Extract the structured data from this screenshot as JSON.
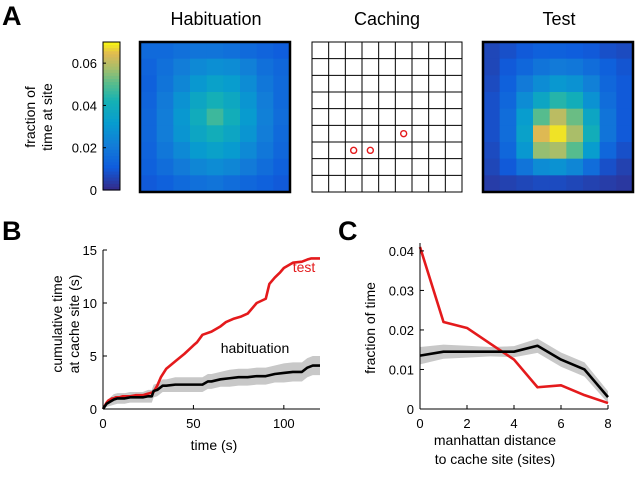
{
  "panels": {
    "A": {
      "letter": "A"
    },
    "B": {
      "letter": "B"
    },
    "C": {
      "letter": "C"
    }
  },
  "colors": {
    "test": "#e41a1c",
    "habituation": "#000000",
    "band": "#c8c8c8",
    "cache_marker": "#e41a1c",
    "grid": "#000000"
  },
  "chart_data": [
    {
      "type": "heatmap",
      "panel": "A",
      "name": "habituation",
      "title": "Habituation",
      "colormap": "parula",
      "clim": [
        0,
        0.07
      ],
      "values": [
        [
          0.015,
          0.015,
          0.017,
          0.018,
          0.018,
          0.017,
          0.015,
          0.013,
          0.011
        ],
        [
          0.013,
          0.017,
          0.021,
          0.025,
          0.027,
          0.026,
          0.022,
          0.017,
          0.014
        ],
        [
          0.012,
          0.018,
          0.024,
          0.03,
          0.034,
          0.032,
          0.026,
          0.019,
          0.015
        ],
        [
          0.013,
          0.02,
          0.028,
          0.036,
          0.041,
          0.037,
          0.029,
          0.021,
          0.015
        ],
        [
          0.014,
          0.021,
          0.03,
          0.039,
          0.047,
          0.04,
          0.031,
          0.022,
          0.016
        ],
        [
          0.014,
          0.021,
          0.029,
          0.036,
          0.04,
          0.036,
          0.029,
          0.021,
          0.015
        ],
        [
          0.013,
          0.019,
          0.025,
          0.031,
          0.034,
          0.031,
          0.025,
          0.019,
          0.014
        ],
        [
          0.012,
          0.016,
          0.02,
          0.024,
          0.026,
          0.024,
          0.02,
          0.016,
          0.012
        ],
        [
          0.01,
          0.012,
          0.015,
          0.017,
          0.018,
          0.016,
          0.014,
          0.012,
          0.01
        ]
      ]
    },
    {
      "type": "grid",
      "panel": "A",
      "name": "caching",
      "title": "Caching",
      "rows": 9,
      "cols": 9,
      "cache_sites": [
        [
          2,
          6
        ],
        [
          3,
          6
        ],
        [
          5,
          5
        ]
      ]
    },
    {
      "type": "heatmap",
      "panel": "A",
      "name": "test",
      "title": "Test",
      "colormap": "parula",
      "clim": [
        0,
        0.07
      ],
      "values": [
        [
          0.006,
          0.008,
          0.01,
          0.012,
          0.012,
          0.011,
          0.01,
          0.008,
          0.007
        ],
        [
          0.006,
          0.01,
          0.014,
          0.018,
          0.02,
          0.019,
          0.016,
          0.012,
          0.009
        ],
        [
          0.007,
          0.012,
          0.02,
          0.026,
          0.03,
          0.028,
          0.022,
          0.014,
          0.01
        ],
        [
          0.008,
          0.014,
          0.026,
          0.036,
          0.044,
          0.04,
          0.028,
          0.016,
          0.01
        ],
        [
          0.008,
          0.016,
          0.032,
          0.05,
          0.06,
          0.052,
          0.036,
          0.018,
          0.01
        ],
        [
          0.008,
          0.016,
          0.034,
          0.064,
          0.068,
          0.058,
          0.04,
          0.018,
          0.01
        ],
        [
          0.007,
          0.014,
          0.03,
          0.056,
          0.058,
          0.05,
          0.032,
          0.014,
          0.008
        ],
        [
          0.006,
          0.01,
          0.018,
          0.026,
          0.028,
          0.024,
          0.016,
          0.008,
          0.005
        ],
        [
          0.004,
          0.005,
          0.006,
          0.007,
          0.007,
          0.006,
          0.005,
          0.004,
          0.003
        ]
      ]
    },
    {
      "type": "colorbar",
      "panel": "A",
      "label_line1": "fraction of",
      "label_line2": "time at site",
      "range": [
        0,
        0.07
      ],
      "ticks": [
        0,
        0.02,
        0.04,
        0.06
      ],
      "tick_labels": [
        "0",
        "0.02",
        "0.04",
        "0.06"
      ]
    },
    {
      "type": "line",
      "panel": "B",
      "xlabel": "time (s)",
      "ylabel_line1": "cumulative time",
      "ylabel_line2": "at cache site (s)",
      "xlim": [
        0,
        120
      ],
      "ylim": [
        0,
        15
      ],
      "xticks": [
        0,
        50,
        100
      ],
      "yticks": [
        0,
        5,
        10,
        15
      ],
      "series": [
        {
          "name": "test",
          "label": "test",
          "x": [
            0,
            1,
            2,
            3,
            4,
            5,
            6,
            7,
            9,
            11,
            13,
            15,
            18,
            20,
            22,
            24,
            26,
            28,
            30,
            32,
            35,
            40,
            45,
            50,
            52,
            55,
            60,
            65,
            68,
            72,
            76,
            80,
            85,
            90,
            92,
            95,
            98,
            100,
            105,
            110,
            113,
            115,
            120
          ],
          "y": [
            0,
            0.3,
            0.6,
            0.8,
            0.9,
            1.0,
            1.0,
            1.1,
            1.1,
            1.2,
            1.2,
            1.2,
            1.3,
            1.3,
            1.3,
            1.4,
            1.5,
            1.6,
            2.2,
            3.0,
            3.8,
            4.5,
            5.2,
            6.0,
            6.3,
            7.0,
            7.3,
            7.8,
            8.2,
            8.5,
            8.7,
            9.0,
            10.0,
            10.4,
            11.8,
            12.4,
            12.9,
            13.3,
            13.8,
            13.9,
            14.1,
            14.2,
            14.2
          ]
        },
        {
          "name": "habituation",
          "label": "habituation",
          "x": [
            0,
            2,
            4,
            6,
            8,
            10,
            12,
            15,
            18,
            20,
            22,
            25,
            27,
            28,
            30,
            33,
            35,
            40,
            45,
            50,
            55,
            58,
            60,
            65,
            70,
            75,
            80,
            85,
            90,
            95,
            100,
            105,
            110,
            113,
            116,
            120
          ],
          "y": [
            0,
            0.5,
            0.7,
            0.9,
            1.0,
            1.0,
            1.0,
            1.1,
            1.1,
            1.1,
            1.1,
            1.2,
            1.2,
            1.7,
            1.8,
            2.2,
            2.2,
            2.3,
            2.3,
            2.3,
            2.3,
            2.6,
            2.6,
            2.8,
            2.9,
            3.0,
            3.0,
            3.1,
            3.1,
            3.3,
            3.4,
            3.5,
            3.5,
            3.9,
            4.1,
            4.1
          ],
          "band_half_width": [
            0,
            0.3,
            0.4,
            0.5,
            0.5,
            0.5,
            0.5,
            0.5,
            0.5,
            0.5,
            0.5,
            0.6,
            0.6,
            0.6,
            0.6,
            0.6,
            0.6,
            0.7,
            0.7,
            0.7,
            0.7,
            0.7,
            0.7,
            0.7,
            0.8,
            0.8,
            0.8,
            0.8,
            0.8,
            0.8,
            0.9,
            0.9,
            0.9,
            0.9,
            0.9,
            0.9
          ]
        }
      ]
    },
    {
      "type": "line",
      "panel": "C",
      "xlabel_line1": "manhattan distance",
      "xlabel_line2": "to cache site (sites)",
      "ylabel": "fraction of time",
      "xlim": [
        0,
        8
      ],
      "ylim": [
        0,
        0.042
      ],
      "xticks": [
        0,
        2,
        4,
        6,
        8
      ],
      "yticks": [
        0,
        0.01,
        0.02,
        0.03,
        0.04
      ],
      "ytick_labels": [
        "0",
        "0.01",
        "0.02",
        "0.03",
        "0.04"
      ],
      "series": [
        {
          "name": "test",
          "x": [
            0,
            1,
            2,
            3,
            4,
            5,
            6,
            7,
            8
          ],
          "y": [
            0.041,
            0.022,
            0.0205,
            0.0165,
            0.0125,
            0.0055,
            0.006,
            0.0035,
            0.0015
          ]
        },
        {
          "name": "habituation",
          "x": [
            0,
            1,
            2,
            3,
            4,
            5,
            6,
            7,
            8
          ],
          "y": [
            0.0135,
            0.0145,
            0.0145,
            0.0145,
            0.0145,
            0.016,
            0.0125,
            0.01,
            0.003
          ],
          "band_half_width": [
            0.0022,
            0.0018,
            0.0015,
            0.0012,
            0.0014,
            0.0018,
            0.0018,
            0.0018,
            0.0015
          ]
        }
      ]
    }
  ]
}
